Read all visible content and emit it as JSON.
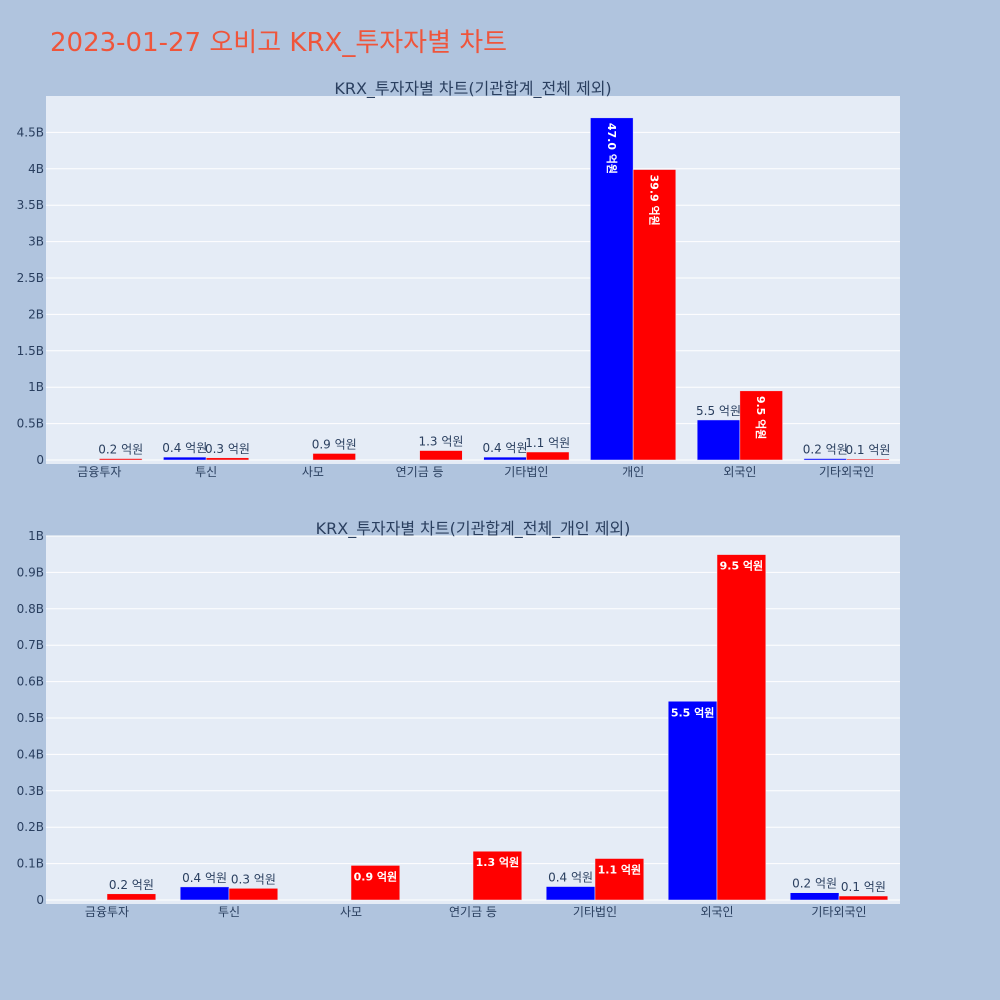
{
  "title": "2023-01-27 오비고 KRX_투자자별 차트",
  "colors": {
    "background": "#b0c4de",
    "plot_background": "#e5ecf6",
    "title": "#ef553b",
    "series_blue": "#0000ff",
    "series_red": "#ff0000"
  },
  "chart_data": [
    {
      "type": "bar",
      "title": "KRX_투자자별 차트(기관합계_전체 제외)",
      "categories": [
        "금융투자",
        "투신",
        "사모",
        "연기금 등",
        "기타법인",
        "개인",
        "외국인",
        "기타외국인"
      ],
      "series": [
        {
          "color": "#0000ff",
          "values": [
            0,
            0.04,
            0,
            0,
            0.04,
            4.7,
            0.55,
            0.02
          ],
          "labels": [
            "",
            "0.4 억원",
            "",
            "",
            "0.4 억원",
            "47.0 억원",
            "5.5 억원",
            "0.2 억원"
          ]
        },
        {
          "color": "#ff0000",
          "values": [
            0.02,
            0.03,
            0.09,
            0.13,
            0.11,
            3.99,
            0.95,
            0.01
          ],
          "labels": [
            "0.2 억원",
            "0.3 억원",
            "0.9 억원",
            "1.3 억원",
            "1.1 억원",
            "39.9 억원",
            "9.5 억원",
            "0.1 억원"
          ]
        }
      ],
      "ylim": [
        0,
        5
      ],
      "yticks": [
        0,
        0.5,
        1,
        1.5,
        2,
        2.5,
        3,
        3.5,
        4,
        4.5
      ],
      "ytick_labels": [
        "0",
        "0.5B",
        "1B",
        "1.5B",
        "2B",
        "2.5B",
        "3B",
        "3.5B",
        "4B",
        "4.5B"
      ],
      "xlabel": "",
      "ylabel": "",
      "grid": true
    },
    {
      "type": "bar",
      "title": "KRX_투자자별 차트(기관합계_전체_개인 제외)",
      "categories": [
        "금융투자",
        "투신",
        "사모",
        "연기금 등",
        "기타법인",
        "외국인",
        "기타외국인"
      ],
      "series": [
        {
          "color": "#0000ff",
          "values": [
            0,
            0.036,
            0,
            0,
            0.037,
            0.546,
            0.02
          ],
          "labels": [
            "",
            "0.4 억원",
            "",
            "",
            "0.4 억원",
            "5.5 억원",
            "0.2 억원"
          ]
        },
        {
          "color": "#ff0000",
          "values": [
            0.017,
            0.032,
            0.095,
            0.134,
            0.114,
            0.949,
            0.011
          ],
          "labels": [
            "0.2 억원",
            "0.3 억원",
            "0.9 억원",
            "1.3 억원",
            "1.1 억원",
            "9.5 억원",
            "0.1 억원"
          ]
        }
      ],
      "ylim": [
        0,
        1
      ],
      "yticks": [
        0,
        0.1,
        0.2,
        0.3,
        0.4,
        0.5,
        0.6,
        0.7,
        0.8,
        0.9,
        1
      ],
      "ytick_labels": [
        "0",
        "0.1B",
        "0.2B",
        "0.3B",
        "0.4B",
        "0.5B",
        "0.6B",
        "0.7B",
        "0.8B",
        "0.9B",
        "1B"
      ],
      "xlabel": "",
      "ylabel": "",
      "grid": true
    }
  ]
}
